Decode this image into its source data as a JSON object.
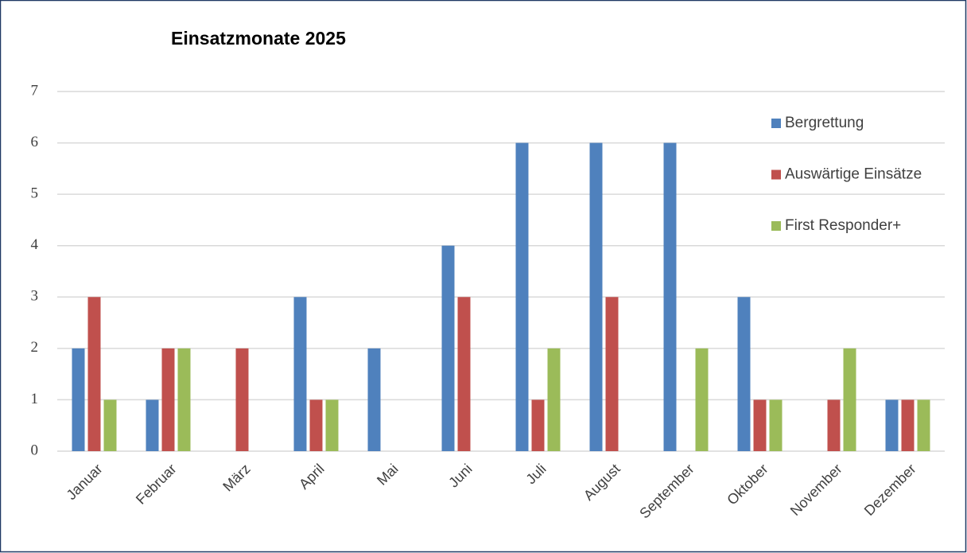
{
  "chart_data": {
    "type": "bar",
    "title": "Einsatzmonate 2025",
    "categories": [
      "Januar",
      "Februar",
      "März",
      "April",
      "Mai",
      "Juni",
      "Juli",
      "August",
      "September",
      "Oktober",
      "November",
      "Dezember"
    ],
    "series": [
      {
        "name": "Bergrettung",
        "color": "#4f81bd",
        "values": [
          2,
          1,
          0,
          3,
          2,
          4,
          6,
          6,
          6,
          3,
          0,
          1
        ]
      },
      {
        "name": "Auswärtige Einsätze",
        "color": "#c0504d",
        "values": [
          3,
          2,
          2,
          1,
          0,
          3,
          1,
          3,
          0,
          1,
          1,
          1
        ]
      },
      {
        "name": "First Responder+",
        "color": "#9bbb59",
        "values": [
          1,
          2,
          0,
          1,
          0,
          0,
          2,
          0,
          2,
          1,
          2,
          1
        ]
      }
    ],
    "ylim": [
      0,
      7
    ],
    "yticks": [
      0,
      1,
      2,
      3,
      4,
      5,
      6,
      7
    ],
    "grid": true,
    "legend": "right"
  }
}
